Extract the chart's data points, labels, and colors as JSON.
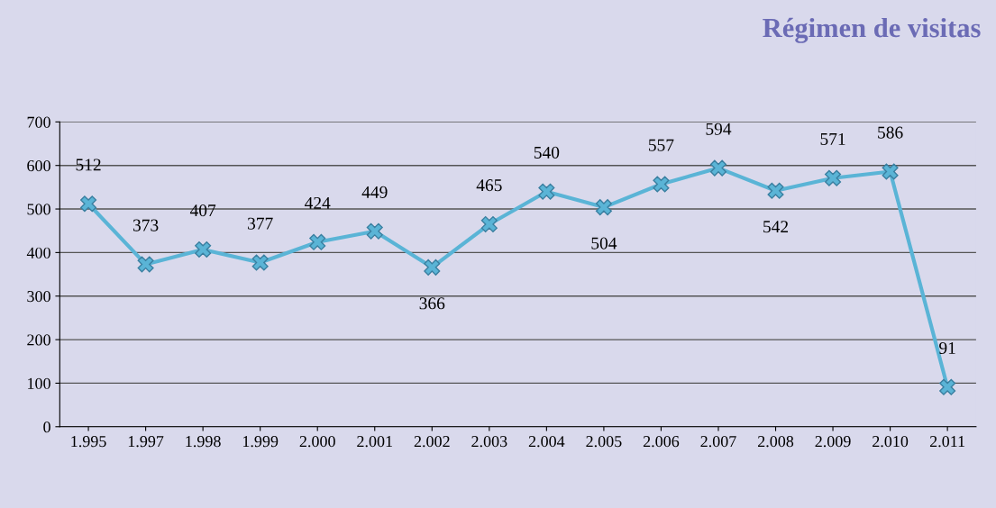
{
  "chart_data": {
    "type": "line",
    "title": "Régimen de visitas",
    "categories": [
      "1.995",
      "1.997",
      "1.998",
      "1.999",
      "2.000",
      "2.001",
      "2.002",
      "2.003",
      "2.004",
      "2.005",
      "2.006",
      "2.007",
      "2.008",
      "2.009",
      "2.010",
      "2.011"
    ],
    "series": [
      {
        "color": "#5ab4d6",
        "values": [
          512,
          373,
          407,
          377,
          424,
          449,
          366,
          465,
          540,
          504,
          557,
          594,
          542,
          571,
          586,
          91
        ]
      }
    ],
    "ylim": [
      0,
      700
    ],
    "yticks": [
      0,
      100,
      200,
      300,
      400,
      500,
      600,
      700
    ],
    "grid": "y",
    "data_labels": true,
    "marker": "cross",
    "line_style": "solid",
    "legend": false
  }
}
